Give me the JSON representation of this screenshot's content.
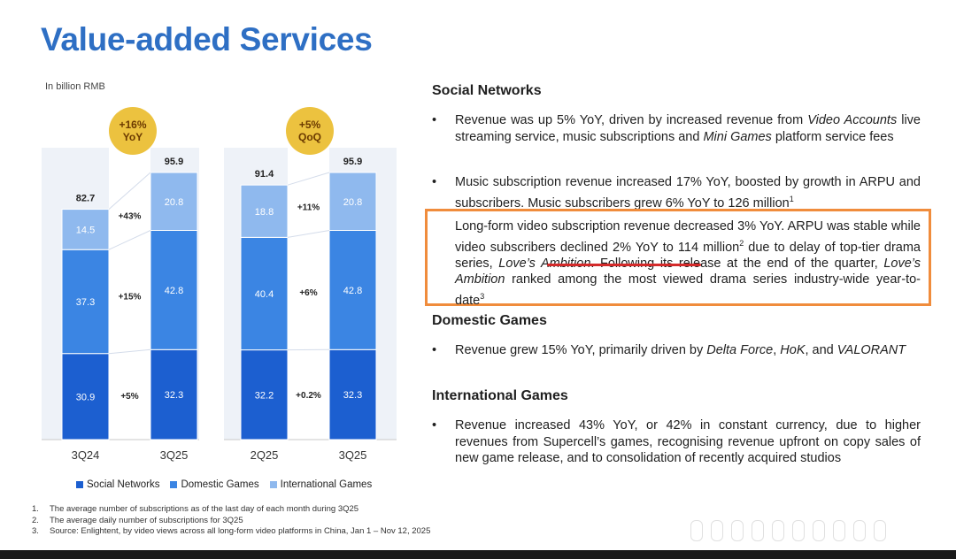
{
  "title": "Value-added Services",
  "unit_note": "In billion RMB",
  "colors": {
    "social_networks": "#1c5fd0",
    "domestic_games": "#3b85e3",
    "international_games": "#8fb9ee",
    "badge": "#ecc23f",
    "title": "#2e6fc4",
    "highlight": "#f08c3c"
  },
  "chart_data": [
    {
      "type": "bar",
      "stacked": true,
      "categories": [
        "3Q24",
        "3Q25"
      ],
      "series": [
        {
          "name": "Social Networks",
          "values": [
            30.9,
            32.3
          ]
        },
        {
          "name": "Domestic Games",
          "values": [
            37.3,
            42.8
          ]
        },
        {
          "name": "International Games",
          "values": [
            14.5,
            20.8
          ]
        }
      ],
      "totals": [
        82.7,
        95.9
      ],
      "growth_labels": [
        "+5%",
        "+15%",
        "+43%"
      ],
      "badge": [
        "+16%",
        "YoY"
      ]
    },
    {
      "type": "bar",
      "stacked": true,
      "categories": [
        "2Q25",
        "3Q25"
      ],
      "series": [
        {
          "name": "Social Networks",
          "values": [
            32.2,
            32.3
          ]
        },
        {
          "name": "Domestic Games",
          "values": [
            40.4,
            42.8
          ]
        },
        {
          "name": "International Games",
          "values": [
            18.8,
            20.8
          ]
        }
      ],
      "totals": [
        91.4,
        95.9
      ],
      "growth_labels": [
        "+0.2%",
        "+6%",
        "+11%"
      ],
      "badge": [
        "+5%",
        "QoQ"
      ]
    }
  ],
  "legend": [
    "Social Networks",
    "Domestic Games",
    "International Games"
  ],
  "footnotes": [
    {
      "num": "1.",
      "text": "The average number of subscriptions as of the last day of each month during 3Q25"
    },
    {
      "num": "2.",
      "text": "The average daily number of subscriptions for 3Q25"
    },
    {
      "num": "3.",
      "text": "Source: Enlightent, by video views across all long-form video platforms in China, Jan 1 – Nov 12, 2025"
    }
  ],
  "sections": {
    "social": {
      "heading": "Social Networks",
      "b1": {
        "t1": "Revenue was up 5% YoY, driven by increased revenue from ",
        "i1": "Video Accounts",
        "t2": " live streaming service, music subscriptions and ",
        "i2": "Mini Games",
        "t3": " platform service fees"
      },
      "b2": {
        "t1": "Music subscription revenue increased 17% YoY, boosted by growth in ARPU and subscribers. Music subscribers grew 6% YoY to 126 million",
        "sup": "1"
      },
      "b3": {
        "t1": "Long-form video subscription revenue decreased 3% YoY. ARPU was stable while video subscribers declined 2% YoY to 114 million",
        "sup1": "2",
        "t2": " due to delay of top-tier drama series, ",
        "i1": "Love’s Ambition",
        "t3": ". Following its release at the end of the quarter, ",
        "i2": "Love’s Ambition",
        "t4": " ranked among the most viewed drama series industry-wide year-to-date",
        "sup2": "3"
      }
    },
    "domestic": {
      "heading": "Domestic Games",
      "b1": {
        "t1": "Revenue grew 15% YoY, primarily driven by ",
        "i1": "Delta Force",
        "t2": ", ",
        "i2": "HoK",
        "t3": ", and ",
        "i3": "VALORANT"
      }
    },
    "international": {
      "heading": "International Games",
      "b1": {
        "t1": "Revenue increased 43% YoY, or 42% in constant currency, due to higher revenues from Supercell’s games, recognising revenue upfront on copy sales of new game release, and to consolidation of recently acquired studios"
      }
    }
  },
  "bullet_char": "•"
}
